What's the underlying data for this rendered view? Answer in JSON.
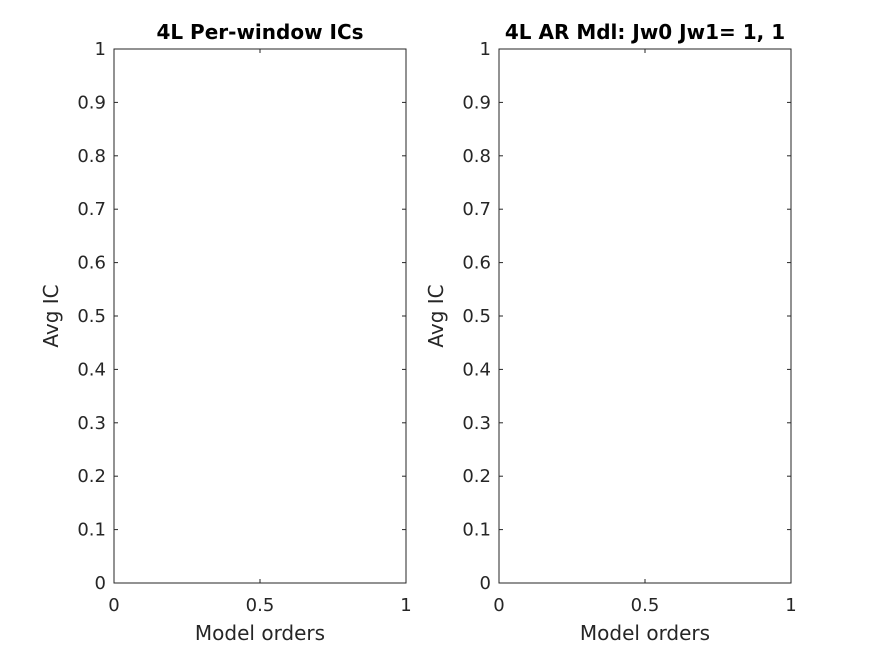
{
  "chart_data": [
    {
      "type": "line",
      "title": "4L Per-window ICs",
      "xlabel": "Model orders",
      "ylabel": "Avg IC",
      "xlim": [
        0,
        1
      ],
      "ylim": [
        0,
        1
      ],
      "xticks": [
        "0",
        "0.5",
        "1"
      ],
      "yticks": [
        "0",
        "0.1",
        "0.2",
        "0.3",
        "0.4",
        "0.5",
        "0.6",
        "0.7",
        "0.8",
        "0.9",
        "1"
      ],
      "series": [],
      "grid": false,
      "legend": "none"
    },
    {
      "type": "line",
      "title": "4L AR Mdl: Jw0 Jw1= 1, 1",
      "xlabel": "Model orders",
      "ylabel": "Avg IC",
      "xlim": [
        0,
        1
      ],
      "ylim": [
        0,
        1
      ],
      "xticks": [
        "0",
        "0.5",
        "1"
      ],
      "yticks": [
        "0",
        "0.1",
        "0.2",
        "0.3",
        "0.4",
        "0.5",
        "0.6",
        "0.7",
        "0.8",
        "0.9",
        "1"
      ],
      "series": [],
      "grid": false,
      "legend": "none"
    }
  ],
  "colors": {
    "axes": "#262626",
    "title": "#000000",
    "background": "#ffffff"
  }
}
